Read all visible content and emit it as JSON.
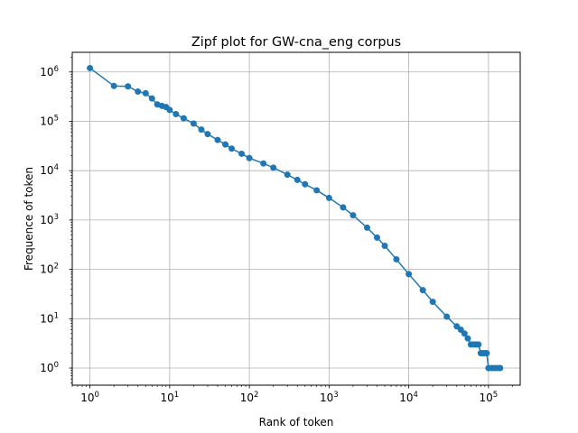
{
  "chart_data": {
    "type": "line",
    "title": "Zipf plot for GW-cna_eng corpus",
    "xlabel": "Rank of token",
    "ylabel": "Frequence of token",
    "xscale": "log",
    "yscale": "log",
    "xlim": [
      0.6,
      250000
    ],
    "ylim": [
      0.45,
      2500000
    ],
    "grid": true,
    "legend": "none",
    "x_ticks": [
      {
        "value": 1,
        "base": "10",
        "exp": "0"
      },
      {
        "value": 10,
        "base": "10",
        "exp": "1"
      },
      {
        "value": 100,
        "base": "10",
        "exp": "2"
      },
      {
        "value": 1000,
        "base": "10",
        "exp": "3"
      },
      {
        "value": 10000,
        "base": "10",
        "exp": "4"
      },
      {
        "value": 100000,
        "base": "10",
        "exp": "5"
      }
    ],
    "y_ticks": [
      {
        "value": 1,
        "base": "10",
        "exp": "0"
      },
      {
        "value": 10,
        "base": "10",
        "exp": "1"
      },
      {
        "value": 100,
        "base": "10",
        "exp": "2"
      },
      {
        "value": 1000,
        "base": "10",
        "exp": "3"
      },
      {
        "value": 10000,
        "base": "10",
        "exp": "4"
      },
      {
        "value": 100000,
        "base": "10",
        "exp": "5"
      },
      {
        "value": 1000000,
        "base": "10",
        "exp": "6"
      }
    ],
    "series": [
      {
        "color": "#1f77b4",
        "marker": "circle",
        "x": [
          1,
          2,
          3,
          4,
          5,
          6,
          7,
          8,
          9,
          10,
          12,
          15,
          20,
          25,
          30,
          40,
          50,
          60,
          80,
          100,
          150,
          200,
          300,
          400,
          500,
          700,
          1000,
          1500,
          2000,
          3000,
          4000,
          5000,
          7000,
          10000,
          15000,
          20000,
          30000,
          40000,
          45000,
          50000,
          55000,
          60000,
          65000,
          70000,
          75000,
          80000,
          85000,
          90000,
          95000,
          100000,
          110000,
          120000,
          130000,
          140000
        ],
        "y": [
          1200000,
          520000,
          510000,
          400000,
          370000,
          290000,
          220000,
          205000,
          195000,
          170000,
          140000,
          115000,
          90000,
          68000,
          55000,
          42000,
          34000,
          28000,
          22000,
          18000,
          14000,
          11500,
          8300,
          6500,
          5300,
          4000,
          2800,
          1800,
          1250,
          700,
          440,
          300,
          160,
          80,
          38,
          22,
          11,
          7,
          6,
          5,
          4,
          3,
          3,
          3,
          3,
          2,
          2,
          2,
          2,
          1,
          1,
          1,
          1,
          1
        ]
      }
    ]
  }
}
